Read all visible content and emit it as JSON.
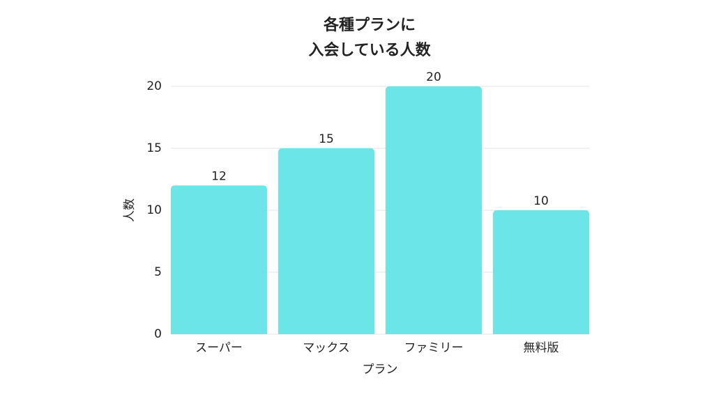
{
  "chart_data": {
    "type": "bar",
    "title": [
      "各種プランに",
      "入会している人数"
    ],
    "x_label": "プラン",
    "y_label": "人数",
    "categories": [
      "スーパー",
      "マックス",
      "ファミリー",
      "無料版"
    ],
    "values": [
      12,
      15,
      20,
      10
    ],
    "color": "#6be5e8",
    "ylim": [
      0,
      20
    ],
    "yticks": [
      0,
      5,
      10,
      15,
      20
    ],
    "grid": true
  }
}
